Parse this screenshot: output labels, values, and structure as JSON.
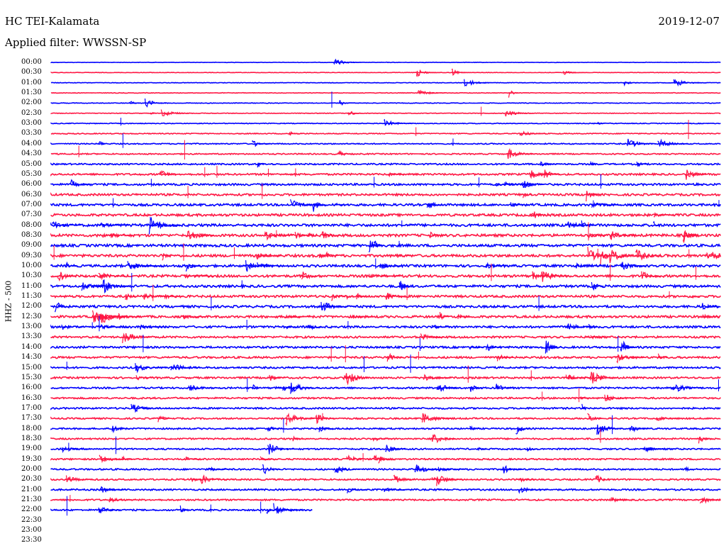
{
  "header": {
    "station": "HC TEI-Kalamata",
    "date": "2019-12-07",
    "filter": "Applied filter: WWSSN-SP"
  },
  "y_axis_label": "HHZ - 500",
  "colors": {
    "odd_row": "#0000ff",
    "even_row": "#ff1744",
    "background": "#ffffff",
    "text": "#000000"
  },
  "chart_data": {
    "type": "line",
    "title": "",
    "time_labels": [
      "00:00",
      "00:30",
      "01:00",
      "01:30",
      "02:00",
      "02:30",
      "03:00",
      "03:30",
      "04:00",
      "04:30",
      "05:00",
      "05:30",
      "06:00",
      "06:30",
      "07:00",
      "07:30",
      "08:00",
      "08:30",
      "09:00",
      "09:30",
      "10:00",
      "10:30",
      "11:00",
      "11:30",
      "12:00",
      "12:30",
      "13:00",
      "13:30",
      "14:00",
      "14:30",
      "15:00",
      "15:30",
      "16:00",
      "16:30",
      "17:00",
      "17:30",
      "18:00",
      "18:30",
      "19:00",
      "19:30",
      "20:00",
      "20:30",
      "21:00",
      "21:30",
      "22:00",
      "22:30",
      "23:00",
      "23:30"
    ],
    "last_trace_fraction": 0.39,
    "noise_level_per_row": [
      0.3,
      0.3,
      0.35,
      0.4,
      0.4,
      0.4,
      0.5,
      0.6,
      0.7,
      0.8,
      1.0,
      1.2,
      1.3,
      1.4,
      1.5,
      1.6,
      1.7,
      1.7,
      1.7,
      1.7,
      1.6,
      1.6,
      1.6,
      1.5,
      1.5,
      1.5,
      1.4,
      1.3,
      1.3,
      1.3,
      1.2,
      1.2,
      1.1,
      1.1,
      1.1,
      1.0,
      1.0,
      1.0,
      1.0,
      1.0,
      1.0,
      1.0,
      1.0,
      1.0,
      1.0,
      0,
      0,
      0
    ]
  }
}
